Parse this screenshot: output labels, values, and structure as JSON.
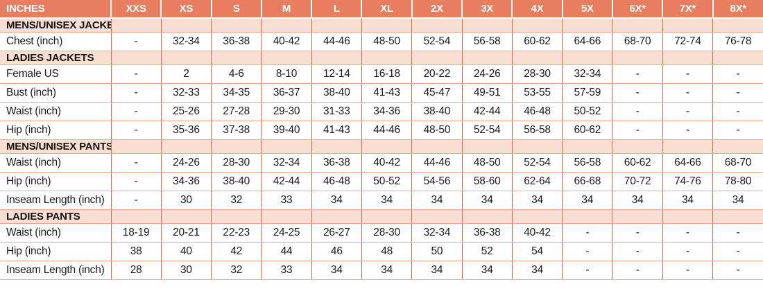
{
  "table": {
    "columns": [
      "INCHES",
      "XXS",
      "XS",
      "S",
      "M",
      "L",
      "XL",
      "2X",
      "3X",
      "4X",
      "5X",
      "6X*",
      "7X*",
      "8X*"
    ],
    "sections": [
      {
        "title": "MENS/UNISEX JACKETS",
        "rows": [
          {
            "label": "Chest (inch)",
            "values": [
              "-",
              "32-34",
              "36-38",
              "40-42",
              "44-46",
              "48-50",
              "52-54",
              "56-58",
              "60-62",
              "64-66",
              "68-70",
              "72-74",
              "76-78"
            ]
          }
        ]
      },
      {
        "title": "LADIES JACKETS",
        "rows": [
          {
            "label": "Female US",
            "values": [
              "-",
              "2",
              "4-6",
              "8-10",
              "12-14",
              "16-18",
              "20-22",
              "24-26",
              "28-30",
              "32-34",
              "-",
              "-",
              "-"
            ]
          },
          {
            "label": "Bust (inch)",
            "values": [
              "-",
              "32-33",
              "34-35",
              "36-37",
              "38-40",
              "41-43",
              "45-47",
              "49-51",
              "53-55",
              "57-59",
              "-",
              "-",
              "-"
            ]
          },
          {
            "label": "Waist (inch)",
            "values": [
              "-",
              "25-26",
              "27-28",
              "29-30",
              "31-33",
              "34-36",
              "38-40",
              "42-44",
              "46-48",
              "50-52",
              "-",
              "-",
              "-"
            ]
          },
          {
            "label": "Hip (inch)",
            "values": [
              "-",
              "35-36",
              "37-38",
              "39-40",
              "41-43",
              "44-46",
              "48-50",
              "52-54",
              "56-58",
              "60-62",
              "-",
              "-",
              "-"
            ]
          }
        ]
      },
      {
        "title": "MENS/UNISEX PANTS",
        "rows": [
          {
            "label": "Waist (inch)",
            "values": [
              "-",
              "24-26",
              "28-30",
              "32-34",
              "36-38",
              "40-42",
              "44-46",
              "48-50",
              "52-54",
              "56-58",
              "60-62",
              "64-66",
              "68-70"
            ]
          },
          {
            "label": "Hip (inch)",
            "values": [
              "-",
              "34-36",
              "38-40",
              "42-44",
              "46-48",
              "50-52",
              "54-56",
              "58-60",
              "62-64",
              "66-68",
              "70-72",
              "74-76",
              "78-80"
            ]
          },
          {
            "label": "Inseam Length (inch)",
            "values": [
              "-",
              "30",
              "32",
              "33",
              "34",
              "34",
              "34",
              "34",
              "34",
              "34",
              "34",
              "34",
              "34"
            ]
          }
        ]
      },
      {
        "title": "LADIES PANTS",
        "rows": [
          {
            "label": "Waist (inch)",
            "values": [
              "18-19",
              "20-21",
              "22-23",
              "24-25",
              "26-27",
              "28-30",
              "32-34",
              "36-38",
              "40-42",
              "-",
              "-",
              "-",
              "-"
            ]
          },
          {
            "label": "Hip (inch)",
            "values": [
              "38",
              "40",
              "42",
              "44",
              "46",
              "48",
              "50",
              "52",
              "54",
              "-",
              "-",
              "-",
              "-"
            ]
          },
          {
            "label": "Inseam Length (inch)",
            "values": [
              "28",
              "30",
              "32",
              "33",
              "34",
              "34",
              "34",
              "34",
              "34",
              "-",
              "-",
              "-",
              "-"
            ]
          }
        ]
      }
    ],
    "colors": {
      "header_bg": "#e87e5f",
      "header_text": "#ffffff",
      "section_bg": "#f9dfd3",
      "border_vertical": "#d96847",
      "border_horizontal": "#efa68c",
      "body_text": "#1a1a1a"
    }
  }
}
